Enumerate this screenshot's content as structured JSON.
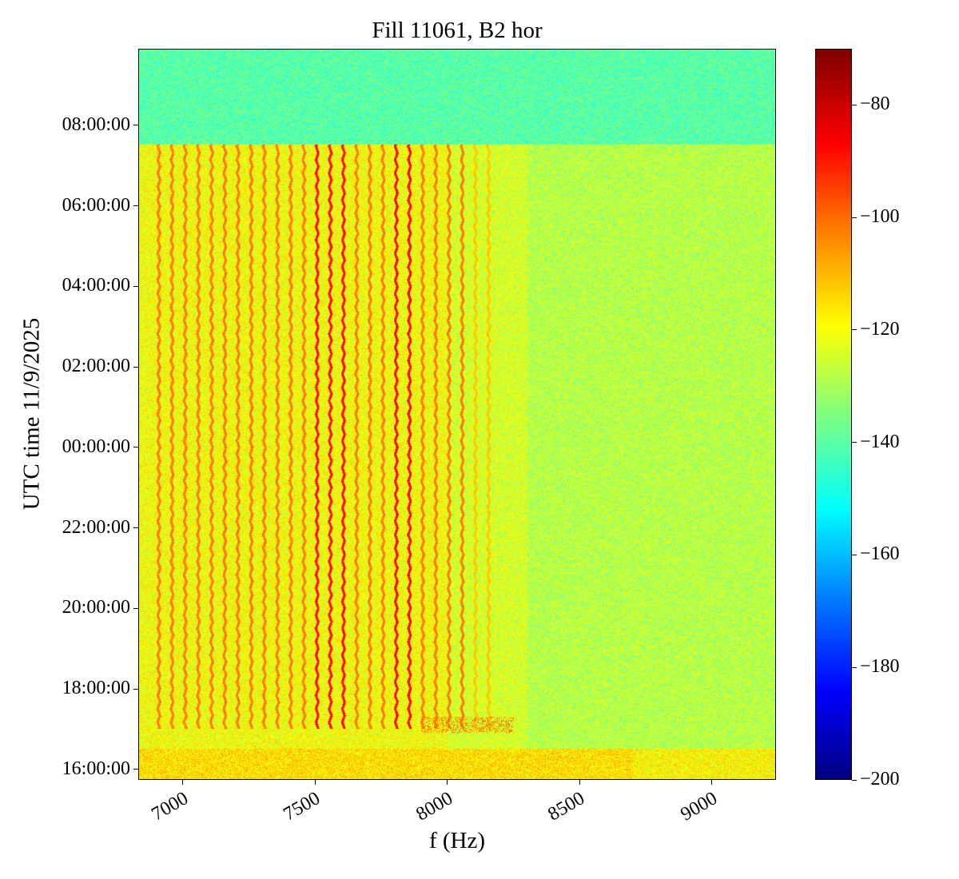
{
  "chart_data": {
    "type": "heatmap",
    "title": "Fill 11061, B2 hor",
    "xlabel": "f (Hz)",
    "ylabel": "UTC time 11/9/2025",
    "xlim": [
      6831,
      9242
    ],
    "x_ticks": [
      7000,
      7500,
      8000,
      8500,
      9000
    ],
    "y_range_hours_from_1600": [
      -0.26,
      17.9
    ],
    "y_ticks": [
      {
        "h": 0,
        "label": "16:00:00"
      },
      {
        "h": 2,
        "label": "18:00:00"
      },
      {
        "h": 4,
        "label": "20:00:00"
      },
      {
        "h": 6,
        "label": "22:00:00"
      },
      {
        "h": 8,
        "label": "00:00:00"
      },
      {
        "h": 10,
        "label": "02:00:00"
      },
      {
        "h": 12,
        "label": "04:00:00"
      },
      {
        "h": 14,
        "label": "06:00:00"
      },
      {
        "h": 16,
        "label": "08:00:00"
      }
    ],
    "colorbar": {
      "range": [
        -200,
        -70
      ],
      "ticks": [
        -80,
        -100,
        -120,
        -140,
        -160,
        -180,
        -200
      ]
    },
    "colormap": "jet",
    "background_level_db": -125,
    "after_dump_level_db": -140,
    "beam_dump_hours_from_1600": 15.55,
    "lines_start_hours_from_1600": 1.0,
    "line_frequencies_hz": [
      6900,
      6950,
      7000,
      7050,
      7100,
      7150,
      7200,
      7250,
      7300,
      7350,
      7400,
      7450,
      7500,
      7550,
      7600,
      7650,
      7700,
      7750,
      7800,
      7850,
      7900,
      7950,
      8000,
      8050,
      8100,
      8150
    ],
    "strong_lines_hz": [
      7500,
      7550,
      7600,
      7800,
      7850
    ]
  }
}
